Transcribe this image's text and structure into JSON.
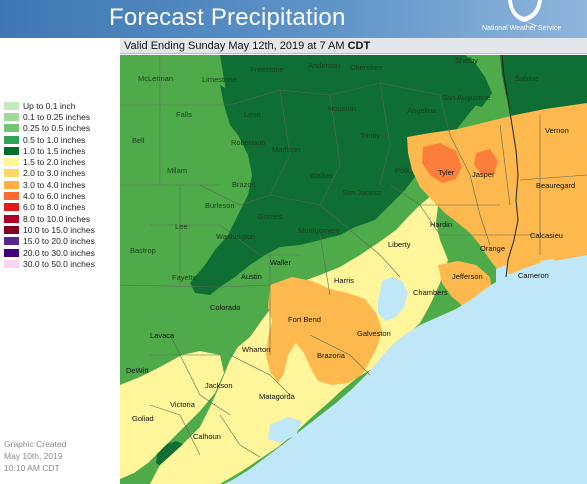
{
  "header": {
    "title": "Forecast Precipitation",
    "agency": "National Weather Service"
  },
  "valid": {
    "prefix": "Valid Ending Sunday May 12th, 2019 at 7 AM ",
    "zone": "CDT"
  },
  "legend": [
    {
      "label": "Up to 0.1 inch",
      "color": "#c7e9c0"
    },
    {
      "label": "0.1 to 0.25 inches",
      "color": "#a1d99b"
    },
    {
      "label": "0.25 to 0.5 inches",
      "color": "#74c476"
    },
    {
      "label": "0.5 to 1.0 inches",
      "color": "#31a354"
    },
    {
      "label": "1.0 to 1.5 inches",
      "color": "#006d2c"
    },
    {
      "label": "1.5 to 2.0 inches",
      "color": "#fff59a"
    },
    {
      "label": "2.0 to 3.0 inches",
      "color": "#fdd768"
    },
    {
      "label": "3.0 to 4.0 inches",
      "color": "#fdae44"
    },
    {
      "label": "4.0 to 6.0 inches",
      "color": "#fb6a2e"
    },
    {
      "label": "6.0 to 8.0 inches",
      "color": "#e31a1c"
    },
    {
      "label": "8.0 to 10.0 inches",
      "color": "#b10026"
    },
    {
      "label": "10.0 to 15.0 inches",
      "color": "#800026"
    },
    {
      "label": "15.0 to 20.0 inches",
      "color": "#54278f"
    },
    {
      "label": "20.0 to 30.0 inches",
      "color": "#3f007d"
    },
    {
      "label": "30.0 to 50.0 inches",
      "color": "#fbd3f2"
    }
  ],
  "created": {
    "line1": "Graphic Created",
    "line2": "May 10th, 2019",
    "line3": "10:10 AM CDT"
  },
  "counties": {
    "mclennan": "McLennan",
    "limestone": "Limestone",
    "freestone": "Freestone",
    "anderson": "Anderson",
    "cherokee": "Cherokee",
    "shelby": "Shelby",
    "sabine": "Sabine",
    "falls": "Falls",
    "leon": "Leon",
    "houston": "Houston",
    "san_augustine": "San Augustine",
    "bell": "Bell",
    "robertson": "Robertson",
    "angelina": "Angelina",
    "madison": "Madison",
    "trinity": "Trinity",
    "vernon": "Vernon",
    "milam": "Milam",
    "walker": "Walker",
    "san_jacinto": "San Jacinto",
    "polk": "Polk",
    "tyler": "Tyler",
    "jasper": "Jasper",
    "burleson": "Burleson",
    "brazos": "Brazos",
    "grimes": "Grimes",
    "montgomery": "Montgomery",
    "beauregard": "Beauregard",
    "lee": "Lee",
    "washington": "Washington",
    "hardin": "Hardin",
    "liberty": "Liberty",
    "bastrop": "Bastrop",
    "waller": "Waller",
    "harris": "Harris",
    "orange": "Orange",
    "calcasieu": "Calcasieu",
    "fayette": "Fayette",
    "austin": "Austin",
    "jefferson": "Jefferson",
    "cameron": "Cameron",
    "colorado": "Colorado",
    "chambers": "Chambers",
    "fort_bend": "Fort Bend",
    "galveston": "Galveston",
    "lavaca": "Lavaca",
    "wharton": "Wharton",
    "brazoria": "Brazoria",
    "dewitt": "DeWitt",
    "jackson": "Jackson",
    "matagorda": "Matagorda",
    "victoria": "Victoria",
    "goliad": "Goliad",
    "calhoun": "Calhoun"
  }
}
